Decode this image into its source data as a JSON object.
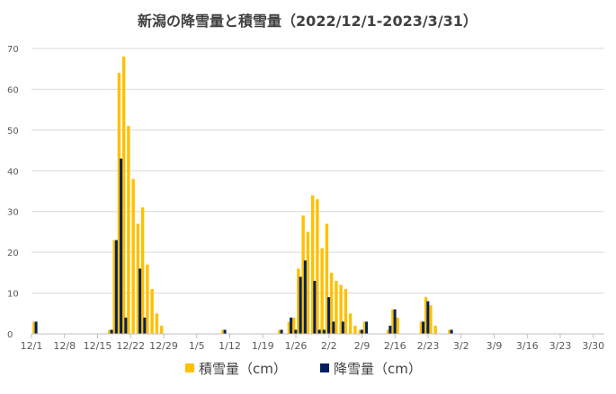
{
  "chart_data": {
    "type": "bar",
    "title": "新潟の降雪量と積雪量（2022/12/1-2023/3/31）",
    "start_date": "2022/12/1",
    "days": 121,
    "ylim": [
      0,
      70
    ],
    "yticks": [
      0,
      10,
      20,
      30,
      40,
      50,
      60,
      70
    ],
    "xticks": [
      "12/1",
      "12/8",
      "12/15",
      "12/22",
      "12/29",
      "1/5",
      "1/12",
      "1/19",
      "1/26",
      "2/2",
      "2/9",
      "2/16",
      "2/23",
      "3/2",
      "3/9",
      "3/16",
      "3/23",
      "3/30"
    ],
    "grid": true,
    "legend_position": "bottom",
    "series": [
      {
        "name": "積雪量（cm）",
        "color": "#FFC000",
        "values": {
          "12/1": 3,
          "12/17": 1,
          "12/18": 23,
          "12/19": 64,
          "12/20": 68,
          "12/21": 51,
          "12/22": 38,
          "12/23": 27,
          "12/24": 31,
          "12/25": 17,
          "12/26": 11,
          "12/27": 5,
          "12/28": 2,
          "1/10": 1,
          "1/22": 1,
          "1/24": 3,
          "1/25": 4,
          "1/26": 16,
          "1/27": 29,
          "1/28": 25,
          "1/29": 34,
          "1/30": 33,
          "1/31": 21,
          "2/1": 27,
          "2/2": 15,
          "2/3": 13,
          "2/4": 12,
          "2/5": 11,
          "2/6": 5,
          "2/7": 2,
          "2/8": 1,
          "2/9": 3,
          "2/14": 1,
          "2/15": 6,
          "2/16": 4,
          "2/21": 3,
          "2/22": 9,
          "2/23": 7,
          "2/24": 2,
          "2/27": 1
        }
      },
      {
        "name": "降雪量（cm）",
        "color": "#002060",
        "values": {
          "12/1": 3,
          "12/17": 1,
          "12/18": 23,
          "12/19": 43,
          "12/20": 4,
          "12/23": 16,
          "12/24": 4,
          "1/10": 1,
          "1/22": 1,
          "1/24": 4,
          "1/25": 1,
          "1/26": 14,
          "1/27": 18,
          "1/29": 13,
          "1/30": 1,
          "1/31": 1,
          "2/1": 9,
          "2/2": 3,
          "2/4": 3,
          "2/8": 1,
          "2/9": 3,
          "2/14": 2,
          "2/15": 6,
          "2/21": 3,
          "2/22": 8,
          "2/27": 1
        }
      }
    ]
  }
}
